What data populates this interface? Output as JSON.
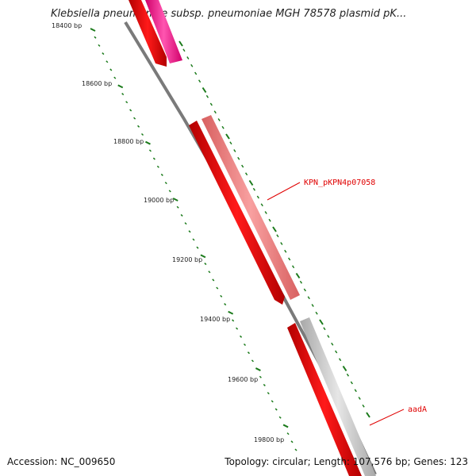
{
  "title": "Klebsiella pneumoniae subsp. pneumoniae MGH 78578 plasmid pK...",
  "accession": "Accession: NC_009650",
  "summary": "Topology: circular; Length: 107,576 bp; Genes: 123",
  "ruler": {
    "tick_labels": [
      "18400 bp",
      "18600 bp",
      "18800 bp",
      "19000 bp",
      "19200 bp",
      "19400 bp",
      "19600 bp",
      "19800 bp"
    ]
  },
  "genes": [
    {
      "label": "",
      "color": "#ee0000",
      "track": "inner"
    },
    {
      "label": "",
      "color": "#ff3399",
      "track": "outer"
    },
    {
      "label": "",
      "color": "#ee0000",
      "track": "inner"
    },
    {
      "label": "KPN_pKPN4p07058",
      "color": "#f08080",
      "track": "outer"
    },
    {
      "label": "",
      "color": "#ee0000",
      "track": "inner"
    },
    {
      "label": "aadA",
      "color": "#c8c8c8",
      "track": "outer"
    }
  ],
  "colors": {
    "backbone": "#7a7a7a",
    "tick_major": "#1a7a1a",
    "tick_minor": "#1a7a1a",
    "label_red": "#e00000"
  }
}
